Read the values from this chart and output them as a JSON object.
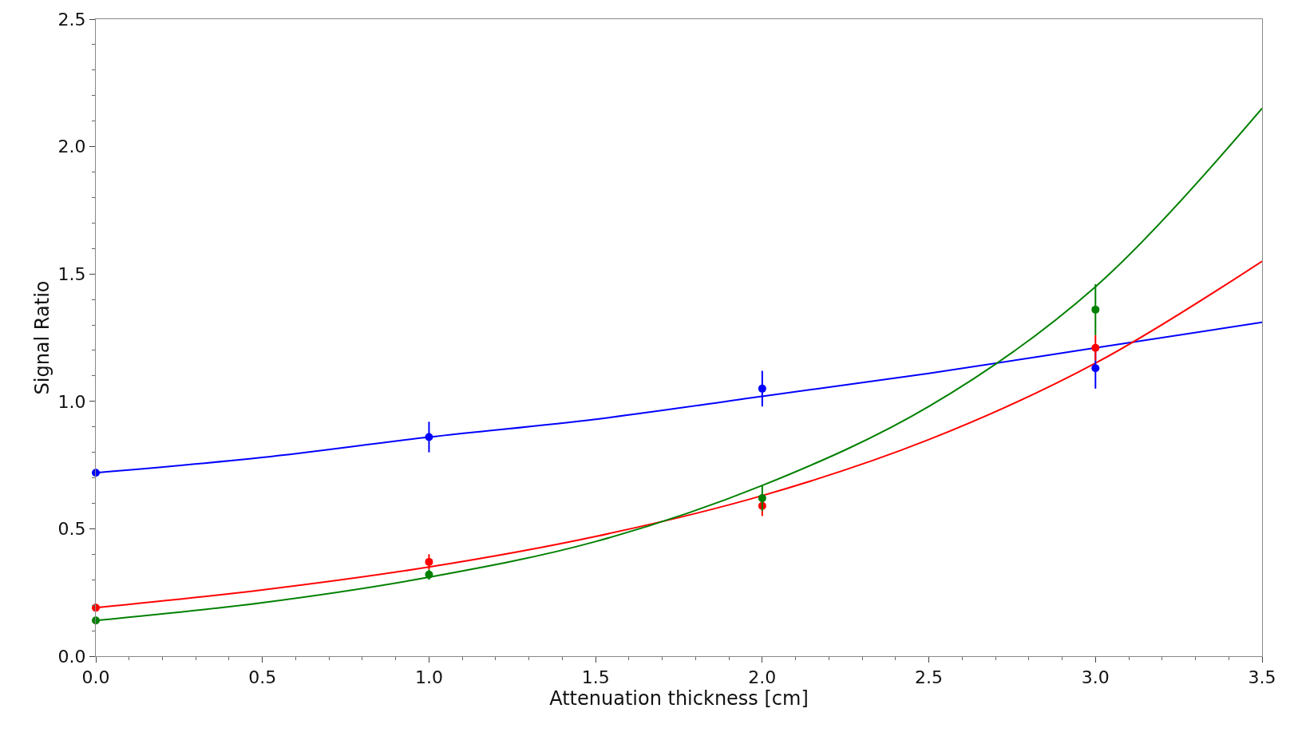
{
  "chart_data": {
    "type": "scatter",
    "xlabel": "Attenuation thickness [cm]",
    "ylabel": "Signal Ratio",
    "x": [
      0,
      1,
      2,
      3
    ],
    "xlim": [
      0,
      3.5
    ],
    "xticks": [
      {
        "value": 0,
        "label": "0.0"
      },
      0.5,
      {
        "value": 1,
        "label": "1.0"
      },
      1.5,
      {
        "value": 2,
        "label": "2.0"
      },
      2.5,
      {
        "value": 3,
        "label": "3.0"
      },
      3.5
    ],
    "ylim": [
      0,
      2.5
    ],
    "yticks": [
      {
        "value": 0,
        "label": "0.0"
      },
      0.5,
      {
        "value": 1,
        "label": "1.0"
      },
      1.5,
      {
        "value": 2,
        "label": "2.0"
      },
      2.5
    ],
    "marker": "circle",
    "series": [
      {
        "type": "line",
        "marker": "none",
        "color": "#0000ff",
        "x": [
          0,
          0.5,
          1,
          1.5,
          2,
          2.5,
          3,
          3.5
        ],
        "values": [
          0.72,
          0.78,
          0.86,
          0.93,
          1.02,
          1.11,
          1.21,
          1.31
        ]
      },
      {
        "type": "line",
        "marker": "none",
        "color": "#ff0000",
        "x": [
          0,
          0.5,
          1,
          1.5,
          2,
          2.5,
          3,
          3.5
        ],
        "values": [
          0.19,
          0.26,
          0.35,
          0.47,
          0.63,
          0.85,
          1.15,
          1.55
        ]
      },
      {
        "type": "line",
        "marker": "none",
        "color": "#008000",
        "x": [
          0,
          0.5,
          1,
          1.5,
          2,
          2.5,
          3,
          3.5
        ],
        "values": [
          0.14,
          0.21,
          0.31,
          0.45,
          0.67,
          0.98,
          1.45,
          2.15
        ]
      },
      {
        "color": "#0000ff",
        "values": [
          0.72,
          0.86,
          1.05,
          1.13
        ],
        "errors": [
          null,
          0.06,
          0.07,
          0.08
        ]
      },
      {
        "color": "#ff0000",
        "values": [
          0.19,
          0.37,
          0.59,
          1.21
        ],
        "errors": [
          null,
          0.03,
          0.04,
          0.05
        ]
      },
      {
        "color": "#008000",
        "values": [
          0.14,
          0.32,
          0.62,
          1.36
        ],
        "errors": [
          null,
          0.02,
          0.05,
          0.1
        ]
      }
    ]
  }
}
